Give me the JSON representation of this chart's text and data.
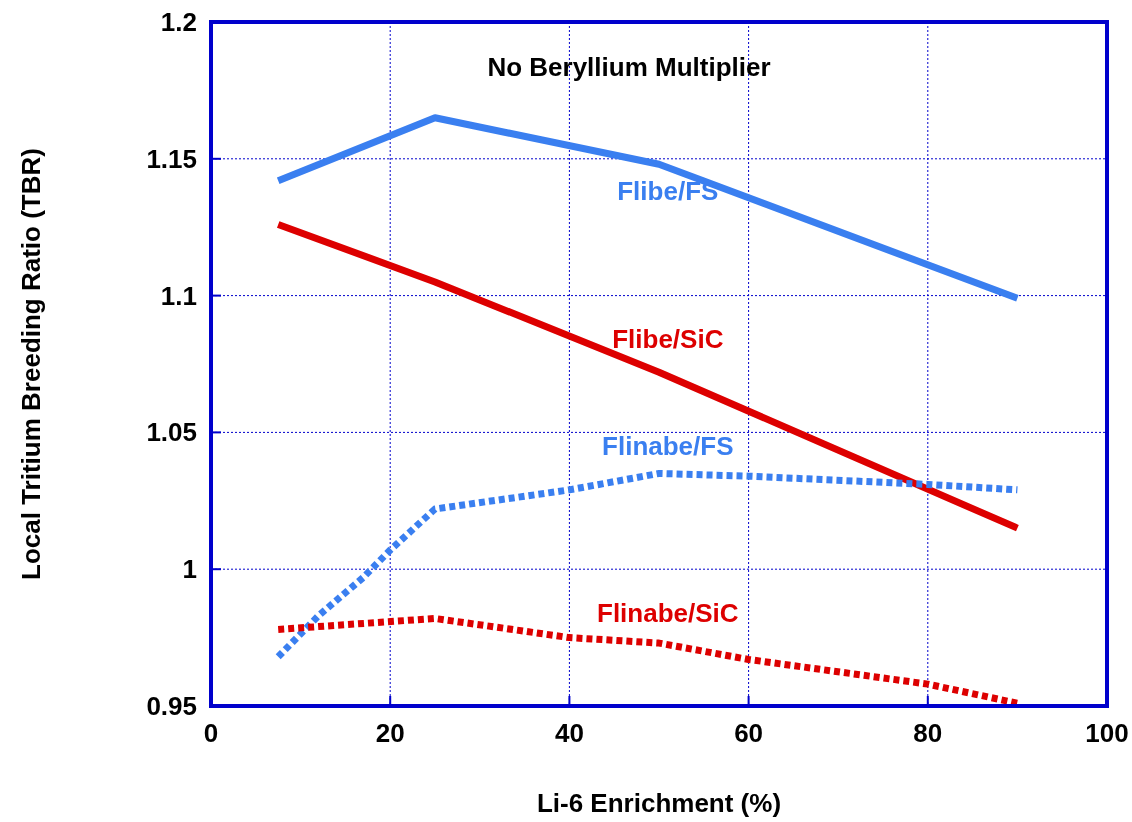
{
  "chart_data": {
    "type": "line",
    "title": "No Beryllium Multiplier",
    "xlabel": "Li-6 Enrichment (%)",
    "ylabel": "Local Tritium Breeding Ratio (TBR)",
    "xlim": [
      0,
      100
    ],
    "xticks": [
      0,
      20,
      40,
      60,
      80,
      100
    ],
    "ylim": [
      0.95,
      1.2
    ],
    "yticks": [
      0.95,
      1,
      1.05,
      1.1,
      1.15,
      1.2
    ],
    "grid": true,
    "series": [
      {
        "name": "Flibe/FS",
        "color": "#3a7ff0",
        "line_style": "solid",
        "x": [
          7.5,
          25,
          50,
          90
        ],
        "values": [
          1.142,
          1.165,
          1.148,
          1.099
        ]
      },
      {
        "name": "Flibe/SiC",
        "color": "#dd0000",
        "line_style": "solid",
        "x": [
          7.5,
          25,
          50,
          90
        ],
        "values": [
          1.126,
          1.105,
          1.072,
          1.015
        ]
      },
      {
        "name": "Flinabe/FS",
        "color": "#3a7ff0",
        "line_style": "dotted",
        "x": [
          7.5,
          12,
          17,
          20,
          25,
          40,
          50,
          60,
          80,
          90
        ],
        "values": [
          0.968,
          0.983,
          0.997,
          1.007,
          1.022,
          1.029,
          1.035,
          1.034,
          1.031,
          1.029
        ]
      },
      {
        "name": "Flinabe/SiC",
        "color": "#dd0000",
        "line_style": "dotted",
        "x": [
          7.5,
          25,
          40,
          50,
          60,
          80,
          90
        ],
        "values": [
          0.978,
          0.982,
          0.975,
          0.973,
          0.967,
          0.958,
          0.951
        ]
      }
    ]
  }
}
